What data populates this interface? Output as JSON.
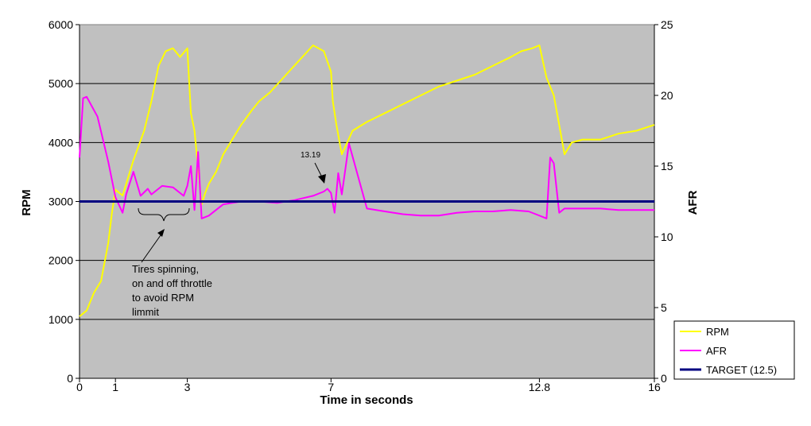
{
  "chart_data": {
    "type": "line",
    "xlabel": "Time in seconds",
    "ylabel_left": "RPM",
    "ylabel_right": "AFR",
    "xlim": [
      0,
      16
    ],
    "ylim_left": [
      0,
      6000
    ],
    "ylim_right": [
      0,
      25
    ],
    "x_ticks": [
      {
        "value": 0,
        "label": "0"
      },
      {
        "value": 1,
        "label": "1"
      },
      {
        "value": 3,
        "label": "3"
      },
      {
        "value": 7,
        "label": "7"
      },
      {
        "value": 12.8,
        "label": "12.8"
      },
      {
        "value": 16,
        "label": "16"
      }
    ],
    "y_ticks_left": [
      0,
      1000,
      2000,
      3000,
      4000,
      5000,
      6000
    ],
    "y_ticks_right": [
      0,
      5,
      10,
      15,
      20,
      25
    ],
    "grid": true,
    "legend_position": "bottom-right",
    "series": [
      {
        "name": "RPM",
        "axis": "left",
        "color": "#ffff00",
        "x": [
          0,
          0.2,
          0.4,
          0.6,
          0.8,
          0.9,
          1.0,
          1.2,
          1.5,
          1.8,
          2.0,
          2.2,
          2.4,
          2.6,
          2.8,
          3.0,
          3.1,
          3.2,
          3.4,
          3.5,
          3.6,
          3.8,
          4.0,
          4.2,
          4.5,
          4.8,
          5.0,
          5.3,
          5.6,
          5.9,
          6.2,
          6.5,
          6.8,
          7.0,
          7.05,
          7.15,
          7.3,
          7.6,
          8.0,
          8.5,
          9.0,
          9.5,
          10.0,
          10.5,
          11.0,
          11.5,
          12.0,
          12.3,
          12.6,
          12.8,
          13.0,
          13.2,
          13.35,
          13.5,
          13.7,
          14.0,
          14.5,
          15.0,
          15.5,
          16.0
        ],
        "y": [
          1050,
          1150,
          1450,
          1650,
          2300,
          2800,
          3200,
          3100,
          3700,
          4200,
          4700,
          5300,
          5550,
          5600,
          5450,
          5600,
          4500,
          4200,
          2950,
          3150,
          3300,
          3500,
          3800,
          4000,
          4300,
          4550,
          4700,
          4850,
          5050,
          5250,
          5450,
          5650,
          5550,
          5200,
          4700,
          4300,
          3800,
          4200,
          4350,
          4500,
          4650,
          4800,
          4950,
          5050,
          5150,
          5300,
          5450,
          5550,
          5600,
          5650,
          5100,
          4800,
          4300,
          3800,
          4000,
          4050,
          4050,
          4150,
          4200,
          4300
        ]
      },
      {
        "name": "AFR",
        "axis": "right",
        "color": "#ff00ff",
        "x": [
          0,
          0.1,
          0.2,
          0.5,
          0.8,
          1.0,
          1.2,
          1.3,
          1.5,
          1.7,
          1.9,
          2.0,
          2.3,
          2.6,
          2.9,
          3.0,
          3.1,
          3.2,
          3.3,
          3.4,
          3.6,
          3.8,
          4.0,
          4.5,
          5.0,
          5.5,
          6.0,
          6.5,
          6.8,
          6.9,
          7.0,
          7.1,
          7.2,
          7.3,
          7.5,
          8.0,
          8.5,
          9.0,
          9.5,
          10.0,
          10.5,
          11.0,
          11.5,
          12.0,
          12.5,
          12.7,
          12.9,
          13.0,
          13.1,
          13.2,
          13.35,
          13.5,
          14.0,
          14.5,
          15.0,
          15.5,
          16.0
        ],
        "y": [
          15.6,
          19.8,
          19.9,
          18.5,
          15.3,
          12.8,
          11.7,
          13.0,
          14.6,
          12.9,
          13.4,
          13.0,
          13.6,
          13.5,
          12.9,
          13.6,
          15.0,
          11.9,
          16.0,
          11.3,
          11.5,
          11.9,
          12.3,
          12.5,
          12.5,
          12.4,
          12.6,
          12.9,
          13.2,
          13.4,
          13.1,
          11.7,
          14.5,
          13.0,
          16.6,
          12.0,
          11.8,
          11.6,
          11.5,
          11.5,
          11.7,
          11.8,
          11.8,
          11.9,
          11.8,
          11.6,
          11.4,
          11.3,
          15.6,
          15.2,
          11.7,
          12.0,
          12.0,
          12.0,
          11.9,
          11.9,
          11.9
        ]
      },
      {
        "name": "TARGET (12.5)",
        "axis": "right",
        "color": "#000080",
        "x": [
          0,
          16
        ],
        "y": [
          12.5,
          12.5
        ]
      }
    ],
    "annotations": [
      {
        "text": "13.19",
        "x": 6.6,
        "y": 13.19,
        "axis": "right"
      },
      {
        "text_lines": [
          "Tires spinning,",
          "on and off throttle",
          "to avoid RPM",
          "limmit"
        ]
      }
    ]
  }
}
